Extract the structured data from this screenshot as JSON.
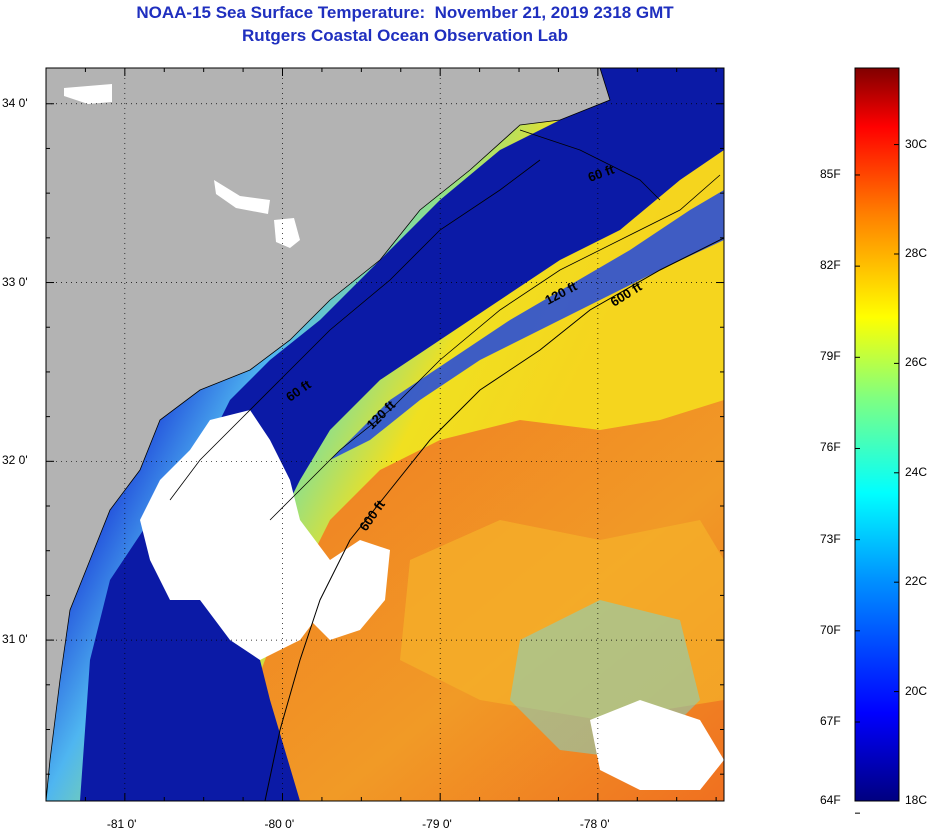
{
  "title": "NOAA-15 Sea Surface Temperature:  November 21, 2019 2318 GMT",
  "subtitle": "Rutgers Coastal Ocean Observation Lab",
  "map": {
    "lon_range": [
      -81.5,
      -77.2
    ],
    "lat_range": [
      30.1,
      34.2
    ],
    "lon_ticks": [
      {
        "value": -81,
        "label": "-81 0'"
      },
      {
        "value": -80,
        "label": "-80 0'"
      },
      {
        "value": -79,
        "label": "-79 0'"
      },
      {
        "value": -78,
        "label": "-78 0'"
      }
    ],
    "lat_ticks": [
      {
        "value": 34,
        "label": "34 0'"
      },
      {
        "value": 33,
        "label": "33 0'"
      },
      {
        "value": 32,
        "label": "32 0'"
      },
      {
        "value": 31,
        "label": "31 0'"
      }
    ],
    "isobath_labels": [
      "60 ft",
      "120 ft",
      "600 ft"
    ],
    "colors": {
      "land": "#b3b3b3",
      "cloud": "#ffffff",
      "cold_shelf": "#0a1aa0",
      "mid_shelf": "#2d9ee8",
      "warm_offshore": "#f0d21e",
      "gulf_stream": "#f06a1e"
    }
  },
  "colorbar": {
    "min_c": 18,
    "max_c": 31.4,
    "fahrenheit_labels": [
      {
        "value": 64,
        "label": "64F"
      },
      {
        "value": 67,
        "label": "67F"
      },
      {
        "value": 70,
        "label": "70F"
      },
      {
        "value": 73,
        "label": "73F"
      },
      {
        "value": 76,
        "label": "76F"
      },
      {
        "value": 79,
        "label": "79F"
      },
      {
        "value": 82,
        "label": "82F"
      },
      {
        "value": 85,
        "label": "85F"
      }
    ],
    "celsius_labels": [
      {
        "value": 18,
        "label": "18C"
      },
      {
        "value": 20,
        "label": "20C"
      },
      {
        "value": 22,
        "label": "22C"
      },
      {
        "value": 24,
        "label": "24C"
      },
      {
        "value": 26,
        "label": "26C"
      },
      {
        "value": 28,
        "label": "28C"
      },
      {
        "value": 30,
        "label": "30C"
      }
    ]
  }
}
